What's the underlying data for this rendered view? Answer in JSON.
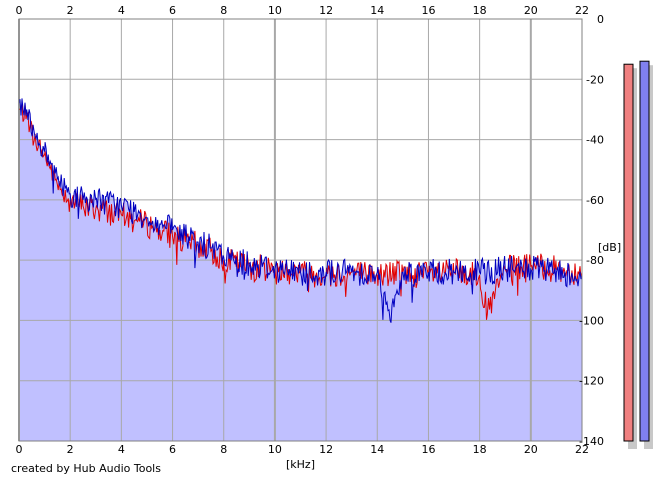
{
  "chart_data": {
    "type": "area",
    "xlabel": "[kHz]",
    "ylabel": "[dB]",
    "xlim": [
      0,
      22
    ],
    "ylim": [
      -140,
      0
    ],
    "xticks": [
      0,
      2,
      4,
      6,
      8,
      10,
      12,
      14,
      16,
      18,
      20,
      22
    ],
    "yticks": [
      0,
      -20,
      -40,
      -60,
      -80,
      -100,
      -120,
      -140
    ],
    "grid": true,
    "fill_color": "#c0c0ff",
    "series": [
      {
        "color": "#e00000",
        "x": [
          0,
          0.3,
          0.6,
          1.0,
          1.5,
          2.0,
          2.5,
          3.0,
          3.5,
          4.0,
          4.5,
          5.0,
          5.5,
          6.0,
          6.5,
          7.0,
          7.5,
          8.0,
          9.0,
          10.0,
          11.0,
          12.0,
          13.0,
          14.0,
          15.0,
          16.0,
          17.0,
          18.0,
          18.3,
          19.0,
          20.0,
          21.0,
          22.0
        ],
        "y": [
          -30,
          -32,
          -40,
          -45,
          -55,
          -60,
          -62,
          -63,
          -64,
          -65,
          -67,
          -68,
          -70,
          -72,
          -74,
          -75,
          -77,
          -80,
          -82,
          -83,
          -84,
          -85,
          -84,
          -85,
          -84,
          -85,
          -84,
          -85,
          -98,
          -83,
          -82,
          -83,
          -84
        ]
      },
      {
        "color": "#0000c0",
        "x": [
          0,
          0.3,
          0.6,
          1.0,
          1.5,
          2.0,
          2.5,
          3.0,
          3.5,
          4.0,
          4.5,
          5.0,
          5.5,
          6.0,
          6.5,
          7.0,
          7.5,
          8.0,
          9.0,
          10.0,
          11.0,
          12.0,
          13.0,
          14.0,
          14.5,
          15.0,
          16.0,
          17.0,
          18.0,
          19.0,
          20.0,
          21.0,
          22.0
        ],
        "y": [
          -28,
          -30,
          -38,
          -44,
          -53,
          -58,
          -60,
          -60,
          -61,
          -62,
          -64,
          -66,
          -68,
          -70,
          -72,
          -74,
          -76,
          -79,
          -81,
          -83,
          -84,
          -84,
          -84,
          -84,
          -100,
          -84,
          -84,
          -84,
          -84,
          -83,
          -83,
          -84,
          -85
        ]
      }
    ]
  },
  "level_meters": [
    {
      "color": "#f08080",
      "level_db": -15
    },
    {
      "color": "#8080f0",
      "level_db": -14
    }
  ],
  "footer": {
    "credit": "created by Hub Audio Tools"
  }
}
